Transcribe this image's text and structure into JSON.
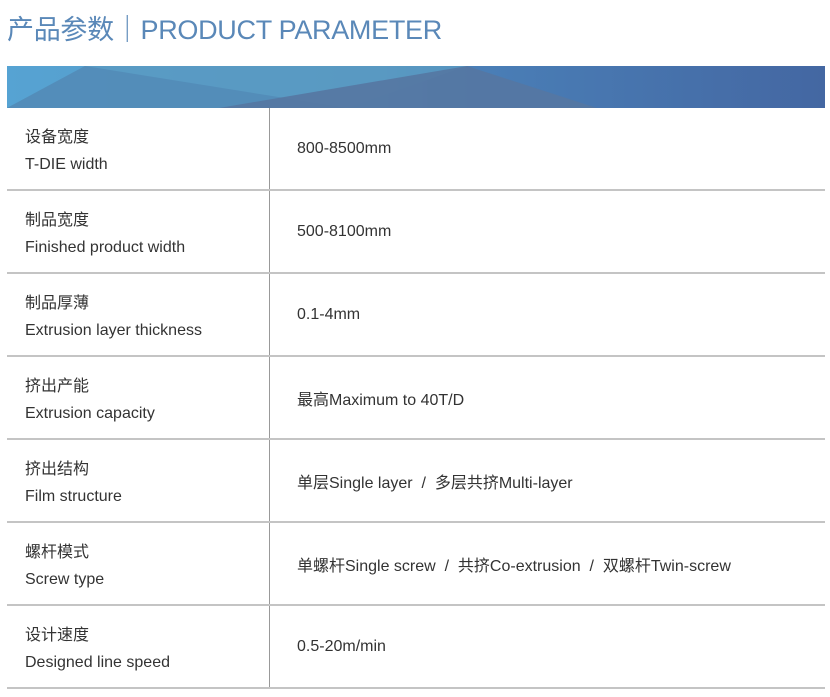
{
  "header": {
    "title": "产品参数｜PRODUCT PARAMETER"
  },
  "colors": {
    "title": "#5a88b8",
    "banner_left": "#56a3d3",
    "banner_right": "#4467a2"
  },
  "parameters": [
    {
      "cn": "设备宽度",
      "en": "T-DIE width",
      "value": "800-8500mm"
    },
    {
      "cn": "制品宽度",
      "en": "Finished product width",
      "value": "500-8100mm"
    },
    {
      "cn": "制品厚薄",
      "en": "Extrusion layer thickness",
      "value": "0.1-4mm"
    },
    {
      "cn": "挤出产能",
      "en": "Extrusion capacity",
      "value": "最高Maximum to 40T/D"
    },
    {
      "cn": "挤出结构",
      "en": "Film structure",
      "value": "单层Single layer  /  多层共挤Multi-layer"
    },
    {
      "cn": "螺杆模式",
      "en": "Screw type",
      "value": "单螺杆Single screw  /  共挤Co-extrusion  /  双螺杆Twin-screw"
    },
    {
      "cn": "设计速度",
      "en": "Designed line speed",
      "value": "0.5-20m/min"
    }
  ]
}
